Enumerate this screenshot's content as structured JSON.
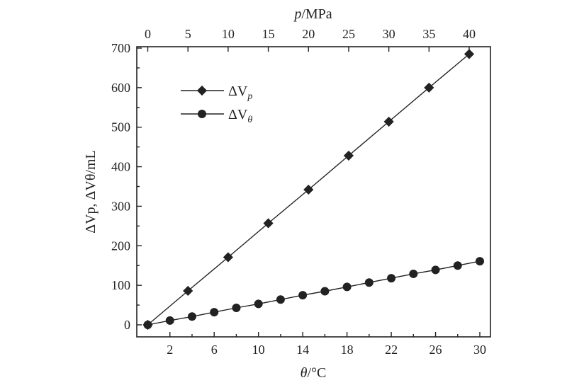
{
  "chart_data": {
    "type": "line",
    "title": "",
    "top_axis": {
      "label_var": "p",
      "label_unit": "/MPa",
      "ticks": [
        0,
        5,
        10,
        15,
        20,
        25,
        30,
        35,
        40
      ],
      "range": [
        0,
        40
      ]
    },
    "bottom_axis": {
      "label_var": "θ",
      "label_unit": "/°C",
      "ticks": [
        2,
        6,
        10,
        14,
        18,
        22,
        26,
        30
      ],
      "range": [
        0,
        30
      ]
    },
    "left_axis": {
      "label_text": "ΔVp, ΔVθ/mL",
      "ticks": [
        0,
        100,
        200,
        300,
        400,
        500,
        600,
        700
      ],
      "range": [
        -20,
        700
      ]
    },
    "grid": false,
    "legend": {
      "placement": "top-left"
    },
    "series": [
      {
        "name": "ΔVp",
        "name_base": "ΔV",
        "name_sub": "p",
        "x_axis": "top",
        "marker": "diamond",
        "x": [
          0,
          5,
          10,
          15,
          20,
          25,
          30,
          35,
          40
        ],
        "values": [
          0,
          86,
          171,
          257,
          342,
          428,
          514,
          600,
          685
        ]
      },
      {
        "name": "ΔVθ",
        "name_base": "ΔV",
        "name_sub": "θ",
        "x_axis": "bottom",
        "marker": "circle",
        "x": [
          0,
          2,
          4,
          6,
          8,
          10,
          12,
          14,
          16,
          18,
          20,
          22,
          24,
          26,
          28,
          30
        ],
        "values": [
          0,
          11,
          21,
          32,
          43,
          53,
          64,
          75,
          85,
          96,
          107,
          118,
          129,
          139,
          150,
          161
        ]
      }
    ]
  }
}
